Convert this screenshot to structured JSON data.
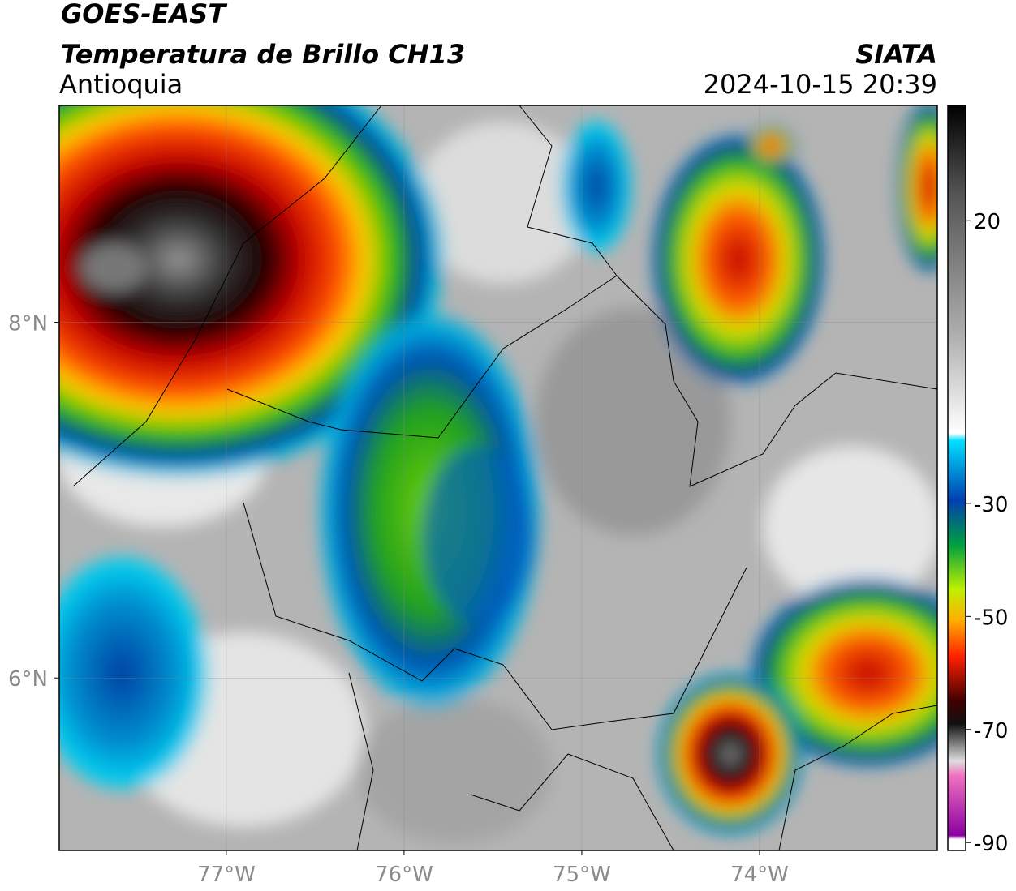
{
  "chart_data": {
    "type": "map",
    "title": "GOES-EAST",
    "subtitle": "Temperatura de Brillo CH13",
    "region": "Antioquia",
    "source": "SIATA",
    "timestamp": "2024-10-15 20:39",
    "xlim": [
      -77.94,
      -73.0
    ],
    "ylim": [
      5.03,
      9.22
    ],
    "xticks": [
      {
        "value": -77,
        "label": "77°W"
      },
      {
        "value": -76,
        "label": "76°W"
      },
      {
        "value": -75,
        "label": "75°W"
      },
      {
        "value": -74,
        "label": "74°W"
      }
    ],
    "yticks": [
      {
        "value": 8,
        "label": "8°N"
      },
      {
        "value": 6,
        "label": "6°N"
      }
    ],
    "colorbar": {
      "lim": [
        -91.4,
        40.4
      ],
      "ticks": [
        20,
        -30,
        -50,
        -70,
        -90
      ]
    },
    "grid": true
  }
}
